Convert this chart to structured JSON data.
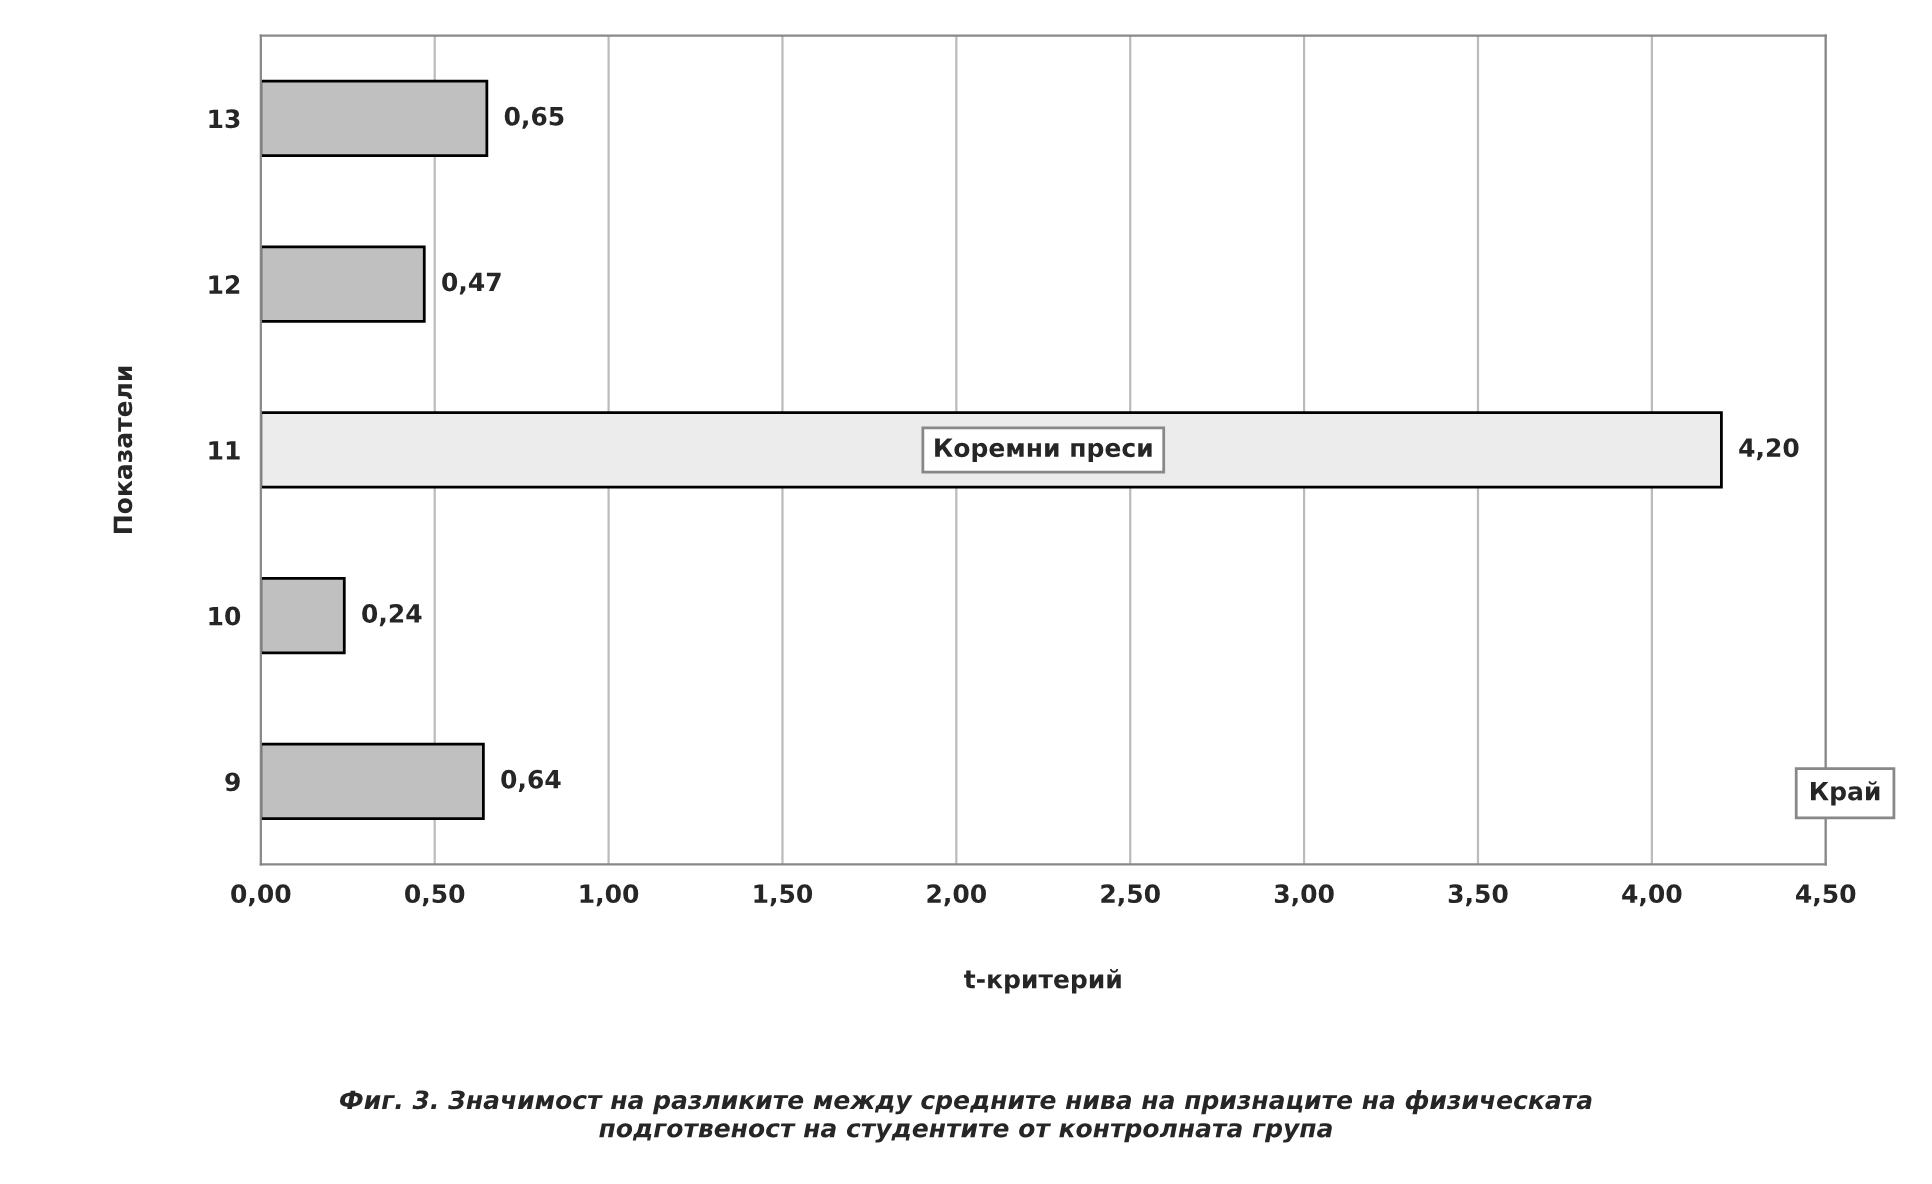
{
  "chart_data": {
    "type": "bar",
    "orientation": "horizontal",
    "categories": [
      "13",
      "12",
      "11",
      "10",
      "9"
    ],
    "values": [
      0.65,
      0.47,
      4.2,
      0.24,
      0.64
    ],
    "value_labels": [
      "0,65",
      "0,47",
      "4,20",
      "0,24",
      "0,64"
    ],
    "colors": [
      "#c0c0c0",
      "#c0c0c0",
      "#ececec",
      "#c0c0c0",
      "#c0c0c0"
    ],
    "xlabel": "t-критерий",
    "ylabel": "Показатели",
    "xlim": [
      0,
      4.5
    ],
    "xticks": [
      {
        "value": 0,
        "label": "0,00"
      },
      {
        "value": 0.5,
        "label": "0,50"
      },
      {
        "value": 1,
        "label": "1,00"
      },
      {
        "value": 1.5,
        "label": "1,50"
      },
      {
        "value": 2,
        "label": "2,00"
      },
      {
        "value": 2.5,
        "label": "2,50"
      },
      {
        "value": 3,
        "label": "3,00"
      },
      {
        "value": 3.5,
        "label": "3,50"
      },
      {
        "value": 4,
        "label": "4,00"
      },
      {
        "value": 4.5,
        "label": "4,50"
      }
    ],
    "grid": "x",
    "legend": false,
    "annotations": [
      "Коремни преси",
      "Край",
      "Фиг. 3. Значимост на разликите между средните нива на признаците на физическата\nподготвеност на студентите от контролната група"
    ]
  }
}
